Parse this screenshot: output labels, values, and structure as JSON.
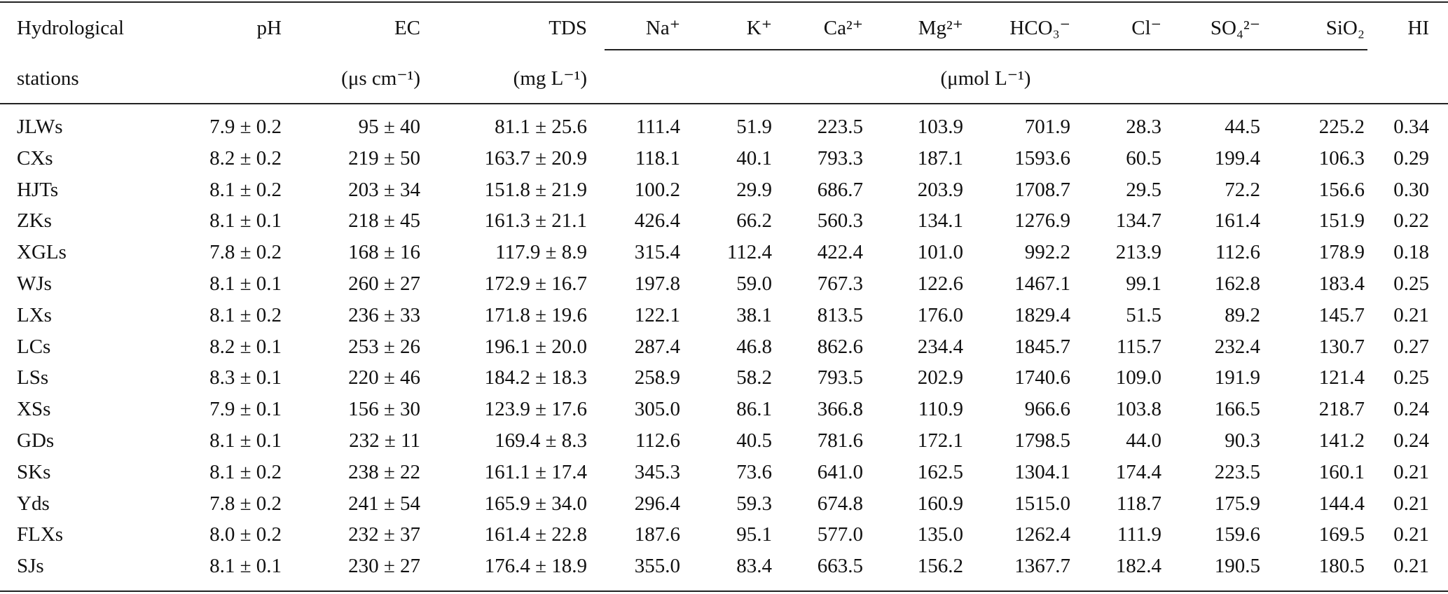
{
  "table": {
    "header": [
      "Hydrological",
      "pH",
      "EC",
      "TDS",
      "Na⁺",
      "K⁺",
      "Ca²⁺",
      "Mg²⁺",
      "HCO₃⁻",
      "Cl⁻",
      "SO₄²⁻",
      "SiO₂",
      "HI"
    ],
    "subheader": {
      "stations": "stations",
      "ec_unit": "(μs cm⁻¹)",
      "tds_unit": "(mg L⁻¹)",
      "ion_unit": "(μmol L⁻¹)"
    },
    "rows": [
      [
        "JLWs",
        "7.9 ± 0.2",
        "95 ± 40",
        "81.1 ± 25.6",
        "111.4",
        "51.9",
        "223.5",
        "103.9",
        "701.9",
        "28.3",
        "44.5",
        "225.2",
        "0.34"
      ],
      [
        "CXs",
        "8.2 ± 0.2",
        "219 ± 50",
        "163.7 ± 20.9",
        "118.1",
        "40.1",
        "793.3",
        "187.1",
        "1593.6",
        "60.5",
        "199.4",
        "106.3",
        "0.29"
      ],
      [
        "HJTs",
        "8.1 ± 0.2",
        "203 ± 34",
        "151.8 ± 21.9",
        "100.2",
        "29.9",
        "686.7",
        "203.9",
        "1708.7",
        "29.5",
        "72.2",
        "156.6",
        "0.30"
      ],
      [
        "ZKs",
        "8.1 ± 0.1",
        "218 ± 45",
        "161.3 ± 21.1",
        "426.4",
        "66.2",
        "560.3",
        "134.1",
        "1276.9",
        "134.7",
        "161.4",
        "151.9",
        "0.22"
      ],
      [
        "XGLs",
        "7.8 ± 0.2",
        "168 ± 16",
        "117.9 ± 8.9",
        "315.4",
        "112.4",
        "422.4",
        "101.0",
        "992.2",
        "213.9",
        "112.6",
        "178.9",
        "0.18"
      ],
      [
        "WJs",
        "8.1 ± 0.1",
        "260 ± 27",
        "172.9 ± 16.7",
        "197.8",
        "59.0",
        "767.3",
        "122.6",
        "1467.1",
        "99.1",
        "162.8",
        "183.4",
        "0.25"
      ],
      [
        "LXs",
        "8.1 ± 0.2",
        "236 ± 33",
        "171.8 ± 19.6",
        "122.1",
        "38.1",
        "813.5",
        "176.0",
        "1829.4",
        "51.5",
        "89.2",
        "145.7",
        "0.21"
      ],
      [
        "LCs",
        "8.2 ± 0.1",
        "253 ± 26",
        "196.1 ± 20.0",
        "287.4",
        "46.8",
        "862.6",
        "234.4",
        "1845.7",
        "115.7",
        "232.4",
        "130.7",
        "0.27"
      ],
      [
        "LSs",
        "8.3 ± 0.1",
        "220 ± 46",
        "184.2 ± 18.3",
        "258.9",
        "58.2",
        "793.5",
        "202.9",
        "1740.6",
        "109.0",
        "191.9",
        "121.4",
        "0.25"
      ],
      [
        "XSs",
        "7.9 ± 0.1",
        "156 ± 30",
        "123.9 ± 17.6",
        "305.0",
        "86.1",
        "366.8",
        "110.9",
        "966.6",
        "103.8",
        "166.5",
        "218.7",
        "0.24"
      ],
      [
        "GDs",
        "8.1 ± 0.1",
        "232 ± 11",
        "169.4 ± 8.3",
        "112.6",
        "40.5",
        "781.6",
        "172.1",
        "1798.5",
        "44.0",
        "90.3",
        "141.2",
        "0.24"
      ],
      [
        "SKs",
        "8.1 ± 0.2",
        "238 ± 22",
        "161.1 ± 17.4",
        "345.3",
        "73.6",
        "641.0",
        "162.5",
        "1304.1",
        "174.4",
        "223.5",
        "160.1",
        "0.21"
      ],
      [
        "Yds",
        "7.8 ± 0.2",
        "241 ± 54",
        "165.9 ± 34.0",
        "296.4",
        "59.3",
        "674.8",
        "160.9",
        "1515.0",
        "118.7",
        "175.9",
        "144.4",
        "0.21"
      ],
      [
        "FLXs",
        "8.0 ± 0.2",
        "232 ± 37",
        "161.4 ± 22.8",
        "187.6",
        "95.1",
        "577.0",
        "135.0",
        "1262.4",
        "111.9",
        "159.6",
        "169.5",
        "0.21"
      ],
      [
        "SJs",
        "8.1 ± 0.1",
        "230 ± 27",
        "176.4 ± 18.9",
        "355.0",
        "83.4",
        "663.5",
        "156.2",
        "1367.7",
        "182.4",
        "190.5",
        "180.5",
        "0.21"
      ]
    ]
  }
}
